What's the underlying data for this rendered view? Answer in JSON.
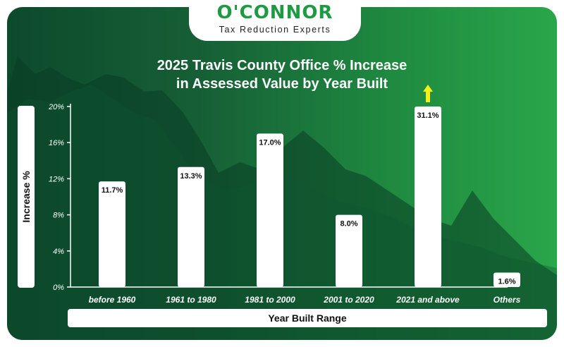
{
  "brand": {
    "name": "O'CONNOR",
    "tagline": "Tax Reduction Experts",
    "accent": "#1e9a43"
  },
  "chart_data": {
    "type": "bar",
    "title": "2025 Travis County Office % Increase in Assessed Value by Year Built",
    "title_lines": [
      "2025 Travis County Office % Increase",
      "in Assessed Value by Year Built"
    ],
    "xlabel": "Year Built Range",
    "ylabel": "Increase %",
    "categories": [
      "before 1960",
      "1961 to 1980",
      "1981 to 2000",
      "2001 to 2020",
      "2021 and above",
      "Others"
    ],
    "values": [
      11.7,
      13.3,
      17.0,
      8.0,
      31.1,
      1.6
    ],
    "data_labels": [
      "11.7%",
      "13.3%",
      "17.0%",
      "8.0%",
      "31.1%",
      "1.6%"
    ],
    "ylim": [
      0,
      20
    ],
    "yticks": [
      0,
      4,
      8,
      12,
      16,
      20
    ],
    "ytick_labels": [
      "0%",
      "4%",
      "8%",
      "12%",
      "16%",
      "20%"
    ],
    "grid": false,
    "legend": "none",
    "truncated_marker": {
      "category": "2021 and above",
      "icon": "up-arrow-icon",
      "color": "#f5ef1a"
    },
    "bar_color": "#ffffff",
    "label_color": "#111111"
  }
}
